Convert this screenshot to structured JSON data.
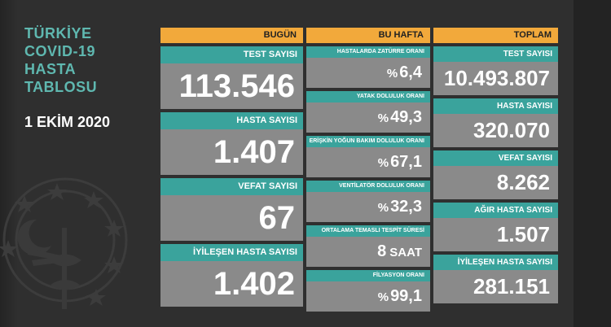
{
  "title": {
    "lines": [
      "TÜRKİYE",
      "COVID-19",
      "HASTA",
      "TABLOSU"
    ]
  },
  "date": "1 EKİM 2020",
  "colors": {
    "background": "#2f2f2f",
    "header_orange": "#f2a93b",
    "label_teal": "#3aa39c",
    "value_gray": "#8a8a8a",
    "title_teal": "#5fb8b0"
  },
  "emblem_icon": "health-ministry-emblem-icon",
  "today": {
    "header": "BUGÜN",
    "cards": [
      {
        "label": "TEST SAYISI",
        "value": "113.546"
      },
      {
        "label": "HASTA SAYISI",
        "value": "1.407"
      },
      {
        "label": "VEFAT SAYISI",
        "value": "67"
      },
      {
        "label": "İYİLEŞEN HASTA SAYISI",
        "value": "1.402"
      }
    ]
  },
  "week": {
    "header": "BU HAFTA",
    "cards": [
      {
        "label": "HASTALARDA ZATÜRRE ORANI",
        "prefix": "%",
        "value": "6,4",
        "suffix": ""
      },
      {
        "label": "YATAK DOLULUK ORANI",
        "prefix": "%",
        "value": "49,3",
        "suffix": ""
      },
      {
        "label": "ERİŞKİN YOĞUN BAKIM DOLULUK ORANI",
        "prefix": "%",
        "value": "67,1",
        "suffix": ""
      },
      {
        "label": "VENTİLATÖR DOLULUK ORANI",
        "prefix": "%",
        "value": "32,3",
        "suffix": ""
      },
      {
        "label": "ORTALAMA TEMASLI TESPİT SÜRESİ",
        "prefix": "",
        "value": "8",
        "suffix": "SAAT"
      },
      {
        "label": "FİLYASYON ORANI",
        "prefix": "%",
        "value": "99,1",
        "suffix": ""
      }
    ]
  },
  "total": {
    "header": "TOPLAM",
    "cards": [
      {
        "label": "TEST SAYISI",
        "value": "10.493.807"
      },
      {
        "label": "HASTA SAYISI",
        "value": "320.070"
      },
      {
        "label": "VEFAT SAYISI",
        "value": "8.262"
      },
      {
        "label": "AĞIR HASTA SAYISI",
        "value": "1.507"
      },
      {
        "label": "İYİLEŞEN HASTA SAYISI",
        "value": "281.151"
      }
    ]
  }
}
